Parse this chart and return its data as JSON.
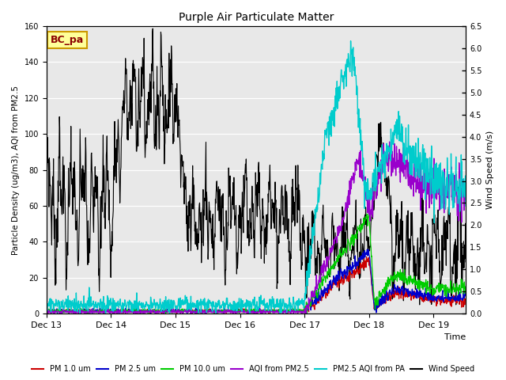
{
  "title": "Purple Air Particulate Matter",
  "ylabel_left": "Particle Density (ug/m3), AQI from PM2.5",
  "ylabel_right": "Wind Speed (m/s)",
  "xlabel": "Time",
  "annotation_text": "BC_pa",
  "annotation_box_color": "#FFFF99",
  "annotation_box_edge": "#CC9900",
  "ylim_left": [
    0,
    160
  ],
  "ylim_right": [
    0.0,
    6.5
  ],
  "xtick_labels": [
    "Dec 13",
    "Dec 14",
    "Dec 15",
    "Dec 16",
    "Dec 17",
    "Dec 18",
    "Dec 19"
  ],
  "yticks_left": [
    0,
    20,
    40,
    60,
    80,
    100,
    120,
    140,
    160
  ],
  "yticks_right": [
    0.0,
    0.5,
    1.0,
    1.5,
    2.0,
    2.5,
    3.0,
    3.5,
    4.0,
    4.5,
    5.0,
    5.5,
    6.0,
    6.5
  ],
  "bg_color": "#E8E8E8",
  "wind_scale": 24.615,
  "legend_entries": [
    {
      "label": "PM 1.0 um",
      "color": "#CC0000"
    },
    {
      "label": "PM 2.5 um",
      "color": "#0000CC"
    },
    {
      "label": "PM 10.0 um",
      "color": "#00CC00"
    },
    {
      "label": "AQI from PM2.5",
      "color": "#9900CC"
    },
    {
      "label": "PM2.5 AQI from PA",
      "color": "#00CCCC"
    },
    {
      "label": "Wind Speed",
      "color": "#000000"
    }
  ]
}
